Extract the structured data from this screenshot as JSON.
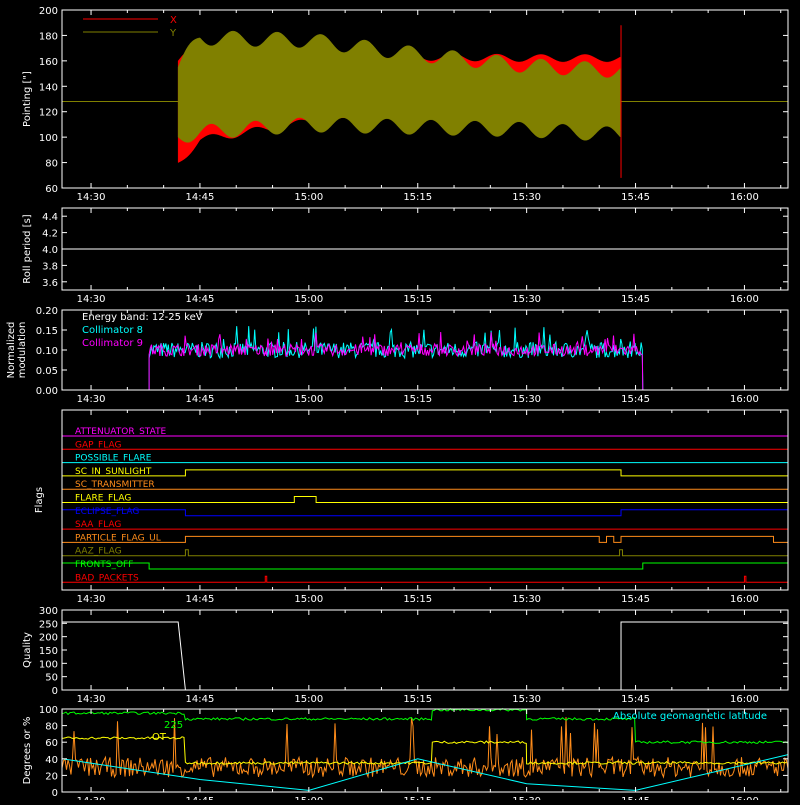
{
  "colors": {
    "background": "#000000",
    "axis": "#ffffff",
    "x_pointing": "#ff0000",
    "y_pointing": "#808000",
    "collimator8": "#00ffff",
    "collimator9": "#ff00ff",
    "green": "#00ff00",
    "orange": "#ff8c1a",
    "yellow": "#ffff00",
    "cyan": "#00ffff"
  },
  "time_ticks": [
    "14:30",
    "14:45",
    "15:00",
    "15:15",
    "15:30",
    "15:45",
    "16:00"
  ],
  "chart_data": [
    {
      "id": "pointing",
      "type": "area",
      "ylabel": "Pointing [\"]",
      "ylim": [
        60,
        200
      ],
      "yticks": [
        "200",
        "180",
        "160",
        "140",
        "120",
        "100",
        "80",
        "60"
      ],
      "legend": [
        "X",
        "Y"
      ],
      "series": [
        {
          "name": "X",
          "x": [
            "14:42",
            "14:45",
            "15:00",
            "15:15",
            "15:30",
            "15:43"
          ],
          "upper": [
            160,
            172,
            170,
            163,
            162,
            162
          ],
          "lower": [
            80,
            98,
            112,
            113,
            110,
            106
          ]
        },
        {
          "name": "Y",
          "x": [
            "14:42",
            "14:45",
            "15:00",
            "15:15",
            "15:30",
            "15:43"
          ],
          "upper": [
            155,
            178,
            176,
            165,
            156,
            152
          ],
          "lower": [
            100,
            104,
            110,
            108,
            106,
            102
          ]
        }
      ],
      "baseline": 128
    },
    {
      "id": "roll",
      "type": "line",
      "ylabel": "Roll period [s]",
      "ylim": [
        3.5,
        4.5
      ],
      "yticks": [
        "4.4",
        "4.2",
        "4.0",
        "3.8",
        "3.6"
      ],
      "value": 4.0
    },
    {
      "id": "modulation",
      "type": "line",
      "ylabel_lines": [
        "Normalized",
        "modulation"
      ],
      "ylim": [
        0,
        0.2
      ],
      "yticks": [
        "0.20",
        "0.15",
        "0.10",
        "0.05",
        "0.00"
      ],
      "annotation": "Energy band: 12-25 keV",
      "legend": [
        "Collimator 8",
        "Collimator 9"
      ],
      "active_range": [
        "14:38",
        "15:46"
      ],
      "series": [
        {
          "name": "Collimator 8",
          "mean": 0.1,
          "spread": 0.02
        },
        {
          "name": "Collimator 9",
          "mean": 0.1,
          "spread": 0.015
        }
      ]
    },
    {
      "id": "flags",
      "type": "line",
      "ylabel": "Flags",
      "flags": [
        {
          "name": "ATTENUATOR_STATE",
          "color": "#ff00ff",
          "on": []
        },
        {
          "name": "GAP_FLAG",
          "color": "#ff0000",
          "on": []
        },
        {
          "name": "POSSIBLE_FLARE",
          "color": "#00ffff",
          "on": []
        },
        {
          "name": "SC_IN_SUNLIGHT",
          "color": "#ffff00",
          "on": [
            [
              "14:43",
              "15:43"
            ]
          ]
        },
        {
          "name": "SC_TRANSMITTER",
          "color": "#ff8c1a",
          "on": []
        },
        {
          "name": "FLARE_FLAG",
          "color": "#ffff00",
          "on": [
            [
              "14:58",
              "15:01"
            ]
          ]
        },
        {
          "name": "ECLIPSE_FLAG",
          "color": "#0000ff",
          "on": [
            [
              "14:26",
              "14:43"
            ],
            [
              "15:43",
              "16:06"
            ]
          ]
        },
        {
          "name": "SAA_FLAG",
          "color": "#ff0000",
          "on": []
        },
        {
          "name": "PARTICLE_FLAG_UL",
          "color": "#ff8c1a",
          "on": [
            [
              "14:43",
              "15:40"
            ],
            [
              "15:41",
              "15:42"
            ],
            [
              "15:43",
              "16:04"
            ]
          ]
        },
        {
          "name": "AAZ_FLAG",
          "color": "#808000",
          "on": [
            [
              "14:43",
              "14:43.4"
            ],
            [
              "15:42.8",
              "15:43.2"
            ]
          ]
        },
        {
          "name": "FRONTS_OFF",
          "color": "#00ff00",
          "on": [
            [
              "14:26",
              "14:38"
            ],
            [
              "15:46",
              "16:06"
            ]
          ]
        },
        {
          "name": "BAD_PACKETS",
          "color": "#ff0000",
          "on": [
            [
              "14:54",
              "14:54.2"
            ],
            [
              "16:00",
              "16:00.2"
            ]
          ]
        }
      ]
    },
    {
      "id": "quality",
      "type": "line",
      "ylabel": "Quality",
      "ylim": [
        0,
        300
      ],
      "yticks": [
        "300",
        "250",
        "200",
        "150",
        "100",
        "50",
        "0"
      ],
      "segments": [
        {
          "x": [
            "14:26",
            "14:42",
            "14:43"
          ],
          "y": [
            255,
            255,
            0
          ]
        },
        {
          "x": [
            "14:43",
            "15:43"
          ],
          "y": [
            0,
            0
          ]
        },
        {
          "x": [
            "15:43",
            "15:43",
            "16:06"
          ],
          "y": [
            0,
            255,
            255
          ]
        }
      ]
    },
    {
      "id": "geo",
      "type": "line",
      "ylabel": "Degrees or %",
      "ylim": [
        0,
        100
      ],
      "yticks": [
        "100",
        "80",
        "60",
        "40",
        "20",
        "0"
      ],
      "legend_right": "Absolute geomagnetic latitude",
      "legend_left_partial": [
        "225",
        "OT"
      ],
      "series": [
        {
          "name": "green",
          "levels": [
            [
              "14:26",
              "14:43",
              95
            ],
            [
              "14:43",
              "15:17",
              88
            ],
            [
              "15:17",
              "15:30",
              99
            ],
            [
              "15:30",
              "15:45",
              88
            ],
            [
              "15:45",
              "16:06",
              60
            ]
          ]
        },
        {
          "name": "yellow",
          "levels": [
            [
              "14:26",
              "14:43",
              65
            ],
            [
              "14:43",
              "15:17",
              35
            ],
            [
              "15:17",
              "15:30",
              60
            ],
            [
              "15:30",
              "16:06",
              35
            ]
          ]
        },
        {
          "name": "orange",
          "mean": 30,
          "spread": 12
        },
        {
          "name": "Absolute geomagnetic latitude",
          "x": [
            "14:26",
            "14:45",
            "15:00",
            "15:15",
            "15:30",
            "15:45",
            "16:06"
          ],
          "y": [
            40,
            15,
            2,
            40,
            10,
            2,
            45
          ]
        }
      ]
    }
  ]
}
